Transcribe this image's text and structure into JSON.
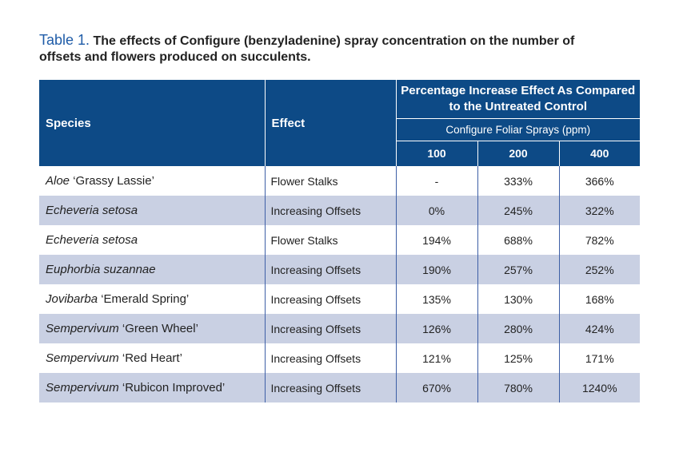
{
  "title": {
    "label": "Table 1.",
    "text": "The effects of Configure (benzyladenine) spray concentration on the number of offsets and flowers produced on succulents."
  },
  "table": {
    "header": {
      "species": "Species",
      "effect": "Effect",
      "group": "Percentage Increase Effect As Compared to the Untreated Control",
      "subgroup": "Configure Foliar Sprays (ppm)",
      "rates": [
        "100",
        "200",
        "400"
      ]
    },
    "rows": [
      {
        "genus": "Aloe",
        "cultivar": "‘Grassy Lassie’",
        "effect": "Flower Stalks",
        "values": [
          "-",
          "333%",
          "366%"
        ]
      },
      {
        "genus": "Echeveria setosa",
        "effect": "Increasing Offsets",
        "values": [
          "0%",
          "245%",
          "322%"
        ]
      },
      {
        "genus": "Echeveria setosa",
        "effect": "Flower Stalks",
        "values": [
          "194%",
          "688%",
          "782%"
        ]
      },
      {
        "genus": "Euphorbia suzannae",
        "effect": "Increasing Offsets",
        "values": [
          "190%",
          "257%",
          "252%"
        ]
      },
      {
        "genus": "Jovibarba",
        "cultivar": "‘Emerald Spring’",
        "effect": "Increasing Offsets",
        "values": [
          "135%",
          "130%",
          "168%"
        ]
      },
      {
        "genus": "Sempervivum",
        "cultivar": "‘Green Wheel’",
        "effect": "Increasing Offsets",
        "values": [
          "126%",
          "280%",
          "424%"
        ]
      },
      {
        "genus": "Sempervivum",
        "cultivar": "‘Red Heart’",
        "effect": "Increasing Offsets",
        "values": [
          "121%",
          "125%",
          "171%"
        ]
      },
      {
        "genus": "Sempervivum",
        "cultivar": "‘Rubicon Improved’",
        "effect": "Increasing Offsets",
        "values": [
          "670%",
          "780%",
          "1240%"
        ]
      }
    ]
  }
}
